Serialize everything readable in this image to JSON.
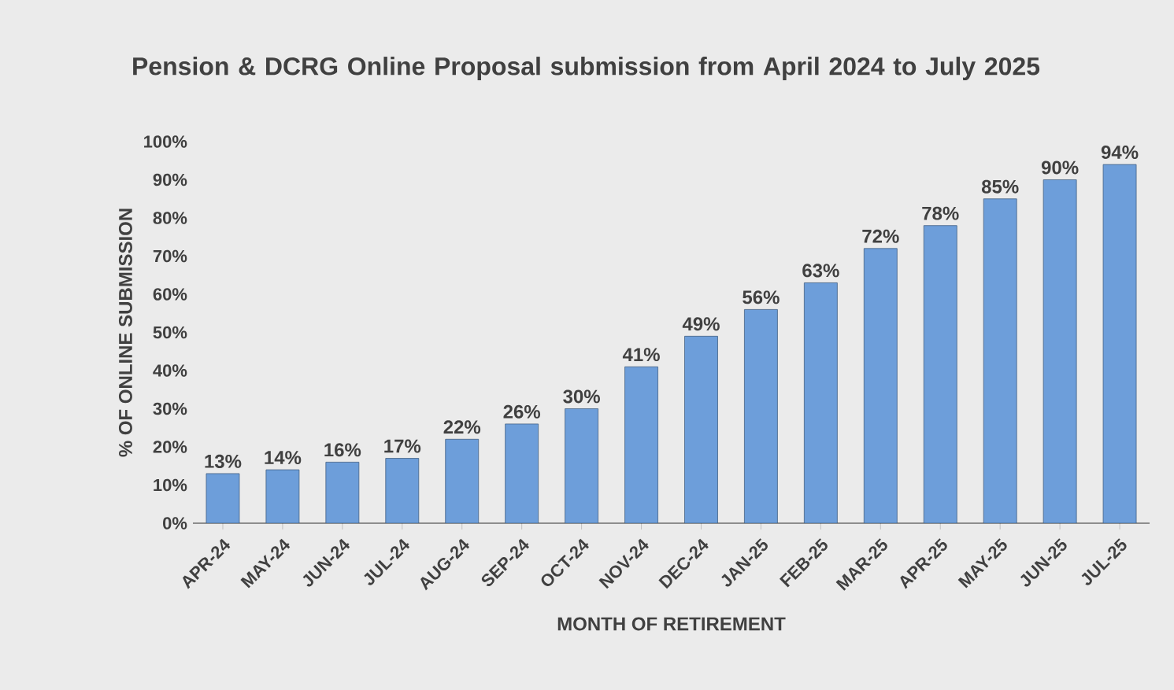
{
  "chart_data": {
    "type": "bar",
    "title": "Pension & DCRG Online Proposal submission from April 2024 to July 2025",
    "xlabel": "MONTH OF RETIREMENT",
    "ylabel": "% OF ONLINE SUBMISSION",
    "categories": [
      "APR-24",
      "MAY-24",
      "JUN-24",
      "JUL-24",
      "AUG-24",
      "SEP-24",
      "OCT-24",
      "NOV-24",
      "DEC-24",
      "JAN-25",
      "FEB-25",
      "MAR-25",
      "APR-25",
      "MAY-25",
      "JUN-25",
      "JUL-25"
    ],
    "values": [
      13,
      14,
      16,
      17,
      22,
      26,
      30,
      41,
      49,
      56,
      63,
      72,
      78,
      85,
      90,
      94
    ],
    "value_labels": [
      "13%",
      "14%",
      "16%",
      "17%",
      "22%",
      "26%",
      "30%",
      "41%",
      "49%",
      "56%",
      "63%",
      "72%",
      "78%",
      "85%",
      "90%",
      "94%"
    ],
    "color": "#6d9eda",
    "ylim": [
      0,
      100
    ],
    "yticks": [
      {
        "value": 0,
        "label": "0%"
      },
      {
        "value": 10,
        "label": "10%"
      },
      {
        "value": 20,
        "label": "20%"
      },
      {
        "value": 30,
        "label": "30%"
      },
      {
        "value": 40,
        "label": "40%"
      },
      {
        "value": 50,
        "label": "50%"
      },
      {
        "value": 60,
        "label": "60%"
      },
      {
        "value": 70,
        "label": "70%"
      },
      {
        "value": 80,
        "label": "80%"
      },
      {
        "value": 90,
        "label": "90%"
      },
      {
        "value": 100,
        "label": "100%"
      }
    ],
    "grid": false
  }
}
